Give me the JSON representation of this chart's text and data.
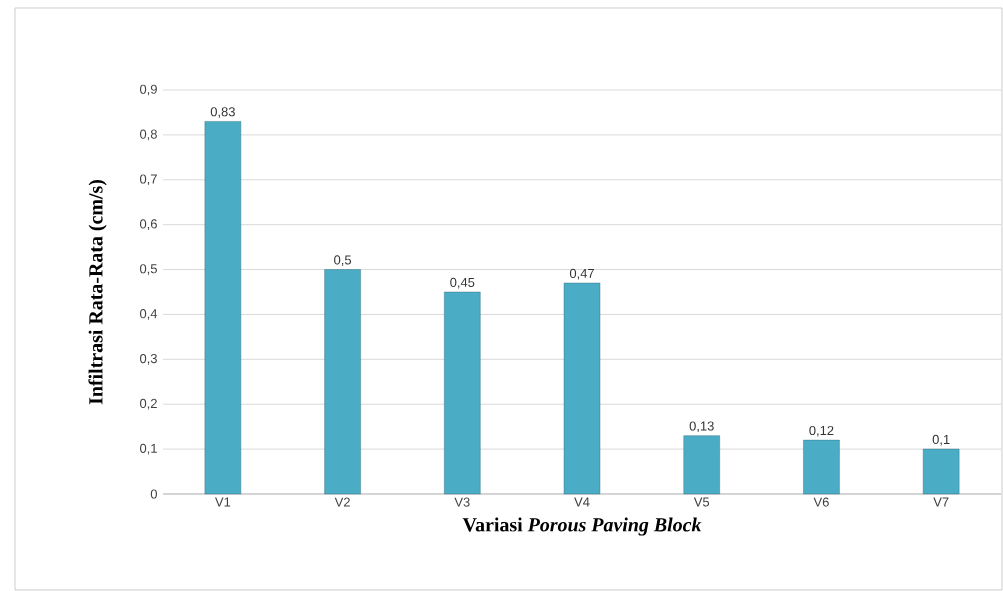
{
  "chart_data": {
    "type": "bar",
    "xlabel": "Variasi *Porous Paving Block*",
    "ylabel": "Infiltrasi Rata-Rata (cm/s)",
    "categories": [
      "V1",
      "V2",
      "V3",
      "V4",
      "V5",
      "V6",
      "V7"
    ],
    "values": [
      0.83,
      0.5,
      0.45,
      0.47,
      0.13,
      0.12,
      0.1
    ],
    "value_labels": [
      "0,83",
      "0,5",
      "0,45",
      "0,47",
      "0,13",
      "0,12",
      "0,1"
    ],
    "color": "#4bacc6",
    "ylim": [
      0,
      0.9
    ],
    "yticks": [
      0,
      {
        "value": 0.1,
        "label": "0,1"
      },
      {
        "value": 0.2,
        "label": "0,2"
      },
      {
        "value": 0.3,
        "label": "0,3"
      },
      {
        "value": 0.4,
        "label": "0,4"
      },
      {
        "value": 0.5,
        "label": "0,5"
      },
      {
        "value": 0.6,
        "label": "0,6"
      },
      {
        "value": 0.7,
        "label": "0,7"
      },
      {
        "value": 0.8,
        "label": "0,8"
      },
      {
        "value": 0.9,
        "label": "0,9"
      }
    ],
    "grid": "y"
  }
}
